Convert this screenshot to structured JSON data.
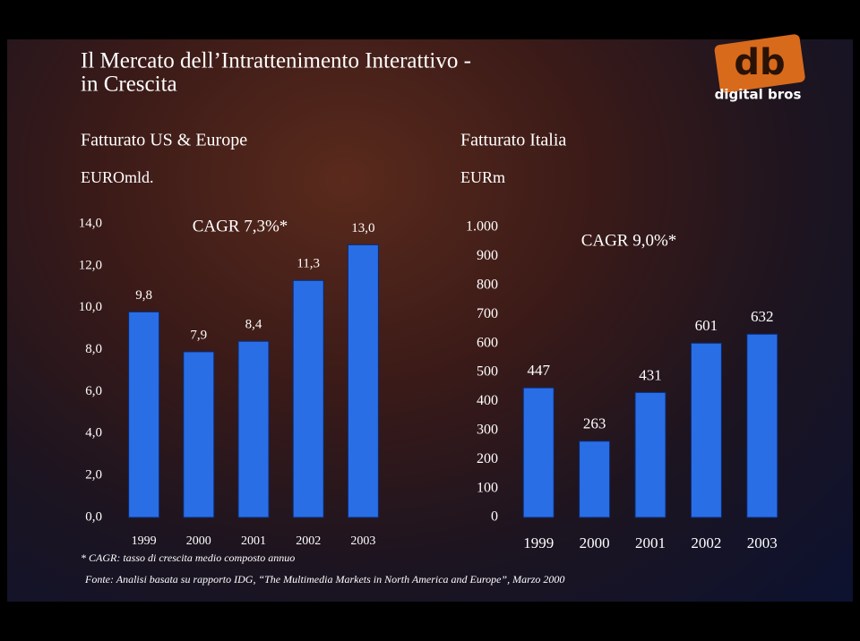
{
  "title": [
    "Il Mercato dell’Intrattenimento Interattivo -",
    "in Crescita"
  ],
  "logo": {
    "mark": "db",
    "text": "digital bros"
  },
  "chart_data": [
    {
      "type": "bar",
      "title": "Fatturato US & Europe",
      "subtitle": "EUROmld.",
      "annotation": "CAGR 7,3%*",
      "categories": [
        "1999",
        "2000",
        "2001",
        "2002",
        "2003"
      ],
      "values": [
        9.8,
        7.9,
        8.4,
        11.3,
        13.0
      ],
      "value_labels": [
        "9,8",
        "7,9",
        "8,4",
        "11,3",
        "13,0"
      ],
      "color": "#2a6ee6",
      "ylim": [
        0,
        14
      ],
      "yticks": [
        {
          "value": 0,
          "label": "0,0"
        },
        {
          "value": 2,
          "label": "2,0"
        },
        {
          "value": 4,
          "label": "4,0"
        },
        {
          "value": 6,
          "label": "6,0"
        },
        {
          "value": 8,
          "label": "8,0"
        },
        {
          "value": 10,
          "label": "10,0"
        },
        {
          "value": 12,
          "label": "12,0"
        },
        {
          "value": 14,
          "label": "14,0"
        }
      ]
    },
    {
      "type": "bar",
      "title": "Fatturato Italia",
      "subtitle": "EURm",
      "annotation": "CAGR 9,0%*",
      "categories": [
        "1999",
        "2000",
        "2001",
        "2002",
        "2003"
      ],
      "values": [
        447,
        263,
        431,
        601,
        632
      ],
      "color": "#2a6ee6",
      "ylim": [
        0,
        1000
      ],
      "yticks": [
        0,
        100,
        200,
        300,
        400,
        500,
        600,
        700,
        800,
        900,
        {
          "value": 1000,
          "label": "1.000"
        }
      ]
    }
  ],
  "footnote": "* CAGR: tasso di crescita medio composto annuo",
  "source": "Fonte: Analisi basata su rapporto IDG, “The Multimedia Markets in North America and Europe”, Marzo 2000"
}
